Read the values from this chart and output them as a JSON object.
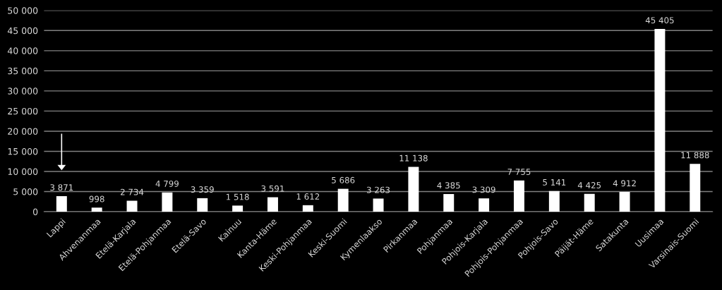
{
  "chart_data": {
    "type": "bar",
    "categories": [
      "Lappi",
      "Ahvenanmaa",
      "Etelä-Karjala",
      "Etelä-Pohjanmaa",
      "Etelä-Savo",
      "Kainuu",
      "Kanta-Häme",
      "Keski-Pohjanmaa",
      "Keski-Suomi",
      "Kymenlaakso",
      "Pirkanmaa",
      "Pohjanmaa",
      "Pohjois-Karjala",
      "Pohjois-Pohjanmaa",
      "Pohjois-Savo",
      "Päijät-Häme",
      "Satakunta",
      "Uusimaa",
      "Varsinais-Suomi"
    ],
    "values": [
      3871,
      998,
      2734,
      4799,
      3359,
      1518,
      3591,
      1612,
      5686,
      3263,
      11138,
      4385,
      3309,
      7755,
      5141,
      4425,
      4912,
      45405,
      11888
    ],
    "value_labels": [
      "3 871",
      "998",
      "2 734",
      "4 799",
      "3 359",
      "1 518",
      "3 591",
      "1 612",
      "5 686",
      "3 263",
      "11 138",
      "4 385",
      "3 309",
      "7 755",
      "5 141",
      "4 425",
      "4 912",
      "45 405",
      "11 888"
    ],
    "color": "#ffffff",
    "ylim": [
      0,
      50000
    ],
    "yticks": [
      0,
      {
        "value": 5000,
        "label": "5 000"
      },
      {
        "value": 10000,
        "label": "10 000"
      },
      {
        "value": 15000,
        "label": "15 000"
      },
      {
        "value": 20000,
        "label": "20 000"
      },
      {
        "value": 25000,
        "label": "25 000"
      },
      {
        "value": 30000,
        "label": "30 000"
      },
      {
        "value": 35000,
        "label": "35 000"
      },
      {
        "value": 40000,
        "label": "40 000"
      },
      {
        "value": 45000,
        "label": "45 000"
      },
      {
        "value": 50000,
        "label": "50 000"
      }
    ],
    "grid": "y",
    "legend": false
  }
}
